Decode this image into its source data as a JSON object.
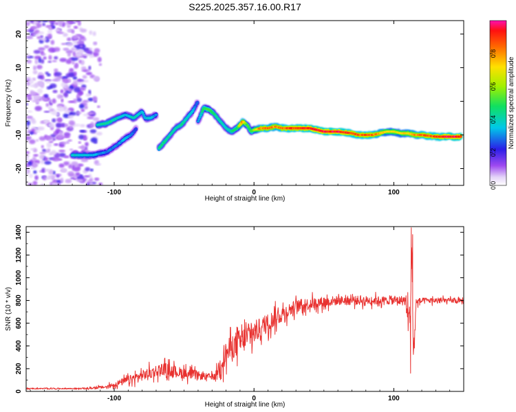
{
  "chart_data": [
    {
      "type": "heatmap",
      "title": "S225.2025.357.16.00.R17",
      "xlabel": "Height of straight line (km)",
      "ylabel": "Frequency (Hz)",
      "xlim": [
        -163,
        150
      ],
      "ylim": [
        -25,
        24
      ],
      "x_ticks": [
        -100,
        0,
        100
      ],
      "x_tick_labels": [
        "-100",
        "0",
        "100"
      ],
      "y_ticks": [
        -20,
        -10,
        0,
        10,
        20
      ],
      "y_tick_labels": [
        "-20",
        "-10",
        "0",
        "10",
        "20"
      ],
      "colorbar": {
        "label": "Normalized spectral amplitude",
        "range": [
          0,
          1
        ],
        "ticks": [
          0.0,
          0.2,
          0.4,
          0.6,
          0.8
        ],
        "tick_labels": [
          "0.0",
          "0.2",
          "0.4",
          "0.6",
          "0.8"
        ]
      },
      "ridges": [
        {
          "name": "main-ridge",
          "x": [
            -40,
            -36,
            -32,
            -28,
            -24,
            -20,
            -16,
            -12,
            -10,
            -8,
            -5,
            -2,
            0,
            5,
            10,
            15,
            20,
            25,
            30,
            40,
            50,
            60,
            70,
            75,
            80,
            85,
            90,
            95,
            100,
            105,
            110,
            115,
            120,
            130,
            140,
            148
          ],
          "y": [
            -6,
            -2,
            -2.5,
            -4,
            -6,
            -8,
            -9,
            -8,
            -7,
            -6,
            -7,
            -9,
            -8.5,
            -8,
            -8,
            -7.5,
            -8,
            -8,
            -8,
            -8,
            -9,
            -9,
            -9.5,
            -10,
            -10,
            -10,
            -9.5,
            -9,
            -9,
            -9.5,
            -9.5,
            -10,
            -10,
            -10.5,
            -10.5,
            -10.5
          ],
          "amplitude": [
            0.3,
            0.5,
            0.55,
            0.45,
            0.4,
            0.4,
            0.45,
            0.5,
            0.7,
            0.85,
            0.5,
            0.5,
            0.6,
            0.85,
            0.85,
            0.8,
            0.85,
            0.9,
            0.9,
            0.95,
            0.95,
            0.95,
            0.9,
            0.85,
            0.9,
            0.85,
            0.8,
            0.7,
            0.7,
            0.7,
            0.75,
            0.8,
            0.85,
            0.9,
            0.95,
            0.95
          ]
        },
        {
          "name": "upper-left-branch",
          "x": [
            -112,
            -105,
            -98,
            -92,
            -86,
            -80,
            -78,
            -74,
            -70
          ],
          "y": [
            -7,
            -6.5,
            -5,
            -4,
            -5,
            -3,
            -5,
            -5,
            -4
          ],
          "amplitude": [
            0.4,
            0.45,
            0.4,
            0.35,
            0.4,
            0.35,
            0.35,
            0.4,
            0.3
          ]
        },
        {
          "name": "rising-branch",
          "x": [
            -68,
            -64,
            -60,
            -56,
            -52,
            -48,
            -44,
            -42,
            -40
          ],
          "y": [
            -14,
            -12,
            -10,
            -8,
            -7,
            -5,
            -3,
            -1.5,
            0
          ],
          "amplitude": [
            0.45,
            0.45,
            0.4,
            0.4,
            0.45,
            0.4,
            0.35,
            0.3,
            0.25
          ]
        },
        {
          "name": "lower-left-branch",
          "x": [
            -130,
            -115,
            -105,
            -98,
            -92,
            -88,
            -84
          ],
          "y": [
            -16,
            -16,
            -15,
            -13,
            -11,
            -10,
            -8
          ],
          "amplitude": [
            0.4,
            0.35,
            0.3,
            0.3,
            0.35,
            0.3,
            0.25
          ]
        }
      ],
      "noise_region_x": [
        -163,
        -115
      ],
      "noise_amplitude": 0.15
    },
    {
      "type": "line",
      "xlabel": "Height of straight line (km)",
      "ylabel": "SNR (10 * v/v)",
      "xlim": [
        -163,
        150
      ],
      "ylim": [
        0,
        1450
      ],
      "x_ticks": [
        -100,
        0,
        100
      ],
      "x_tick_labels": [
        "-100",
        "0",
        "100"
      ],
      "y_ticks": [
        0,
        200,
        400,
        600,
        800,
        1000,
        1200,
        1400
      ],
      "y_tick_labels": [
        "0",
        "200",
        "400",
        "600",
        "800",
        "1000",
        "1200",
        "1400"
      ],
      "series": [
        {
          "name": "SNR",
          "color": "#e8312f",
          "envelope_x": [
            -163,
            -140,
            -120,
            -105,
            -95,
            -85,
            -75,
            -65,
            -55,
            -45,
            -35,
            -28,
            -22,
            -15,
            -8,
            -2,
            5,
            12,
            20,
            30,
            45,
            60,
            80,
            100,
            108,
            111,
            112,
            113,
            114,
            116,
            125,
            140,
            150
          ],
          "envelope_y": [
            25,
            25,
            25,
            40,
            80,
            120,
            160,
            200,
            170,
            150,
            130,
            130,
            300,
            400,
            450,
            500,
            560,
            620,
            680,
            750,
            780,
            800,
            800,
            800,
            800,
            600,
            900,
            1200,
            300,
            790,
            800,
            800,
            790
          ],
          "spread_y": [
            10,
            10,
            12,
            30,
            60,
            80,
            100,
            110,
            100,
            90,
            60,
            50,
            220,
            220,
            230,
            220,
            180,
            160,
            140,
            110,
            100,
            80,
            80,
            70,
            90,
            300,
            500,
            300,
            200,
            60,
            50,
            40,
            40
          ],
          "spikes": [
            {
              "x": 112.5,
              "y": 1440
            },
            {
              "x": 113.5,
              "y": 1380
            },
            {
              "x": 112,
              "y": 160
            }
          ]
        }
      ]
    }
  ]
}
